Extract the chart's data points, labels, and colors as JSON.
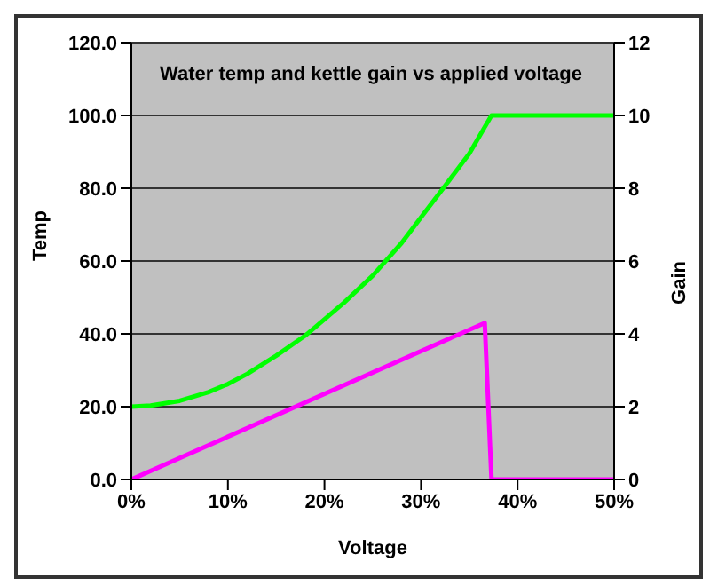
{
  "chart_data": {
    "type": "line",
    "title": "Water temp and kettle gain vs applied voltage",
    "xlabel": "Voltage",
    "ylabel": "Temp",
    "y2label": "Gain",
    "xlim": [
      0,
      0.5
    ],
    "xticks": [
      {
        "value": 0,
        "label": "0%"
      },
      {
        "value": 0.1,
        "label": "10%"
      },
      {
        "value": 0.2,
        "label": "20%"
      },
      {
        "value": 0.3,
        "label": "30%"
      },
      {
        "value": 0.4,
        "label": "40%"
      },
      {
        "value": 0.5,
        "label": "50%"
      }
    ],
    "ylim": [
      0,
      120
    ],
    "yticks": [
      {
        "value": 0,
        "label": "0.0"
      },
      {
        "value": 20,
        "label": "20.0"
      },
      {
        "value": 40,
        "label": "40.0"
      },
      {
        "value": 60,
        "label": "60.0"
      },
      {
        "value": 80,
        "label": "80.0"
      },
      {
        "value": 100,
        "label": "100.0"
      },
      {
        "value": 120,
        "label": "120.0"
      }
    ],
    "y2lim": [
      0,
      12
    ],
    "y2ticks": [
      0,
      2,
      4,
      6,
      8,
      10,
      12
    ],
    "series": [
      {
        "color": "#00ff00",
        "x": [
          0,
          0.02,
          0.05,
          0.08,
          0.1,
          0.12,
          0.15,
          0.18,
          0.2,
          0.22,
          0.25,
          0.26,
          0.28,
          0.3,
          0.323,
          0.35,
          0.373,
          0.5
        ],
        "values": [
          20,
          20.3,
          21.6,
          24,
          26.2,
          29,
          34,
          39.5,
          44,
          48.5,
          56,
          59,
          65,
          72,
          80,
          89.5,
          100,
          100
        ]
      },
      {
        "color": "#ff00ff",
        "axis": "y2",
        "x": [
          0,
          0.366,
          0.373,
          0.5
        ],
        "values": [
          0,
          4.3,
          0,
          0
        ]
      }
    ],
    "grid": "y",
    "legend": false,
    "marker": "none",
    "line_style": "solid"
  }
}
